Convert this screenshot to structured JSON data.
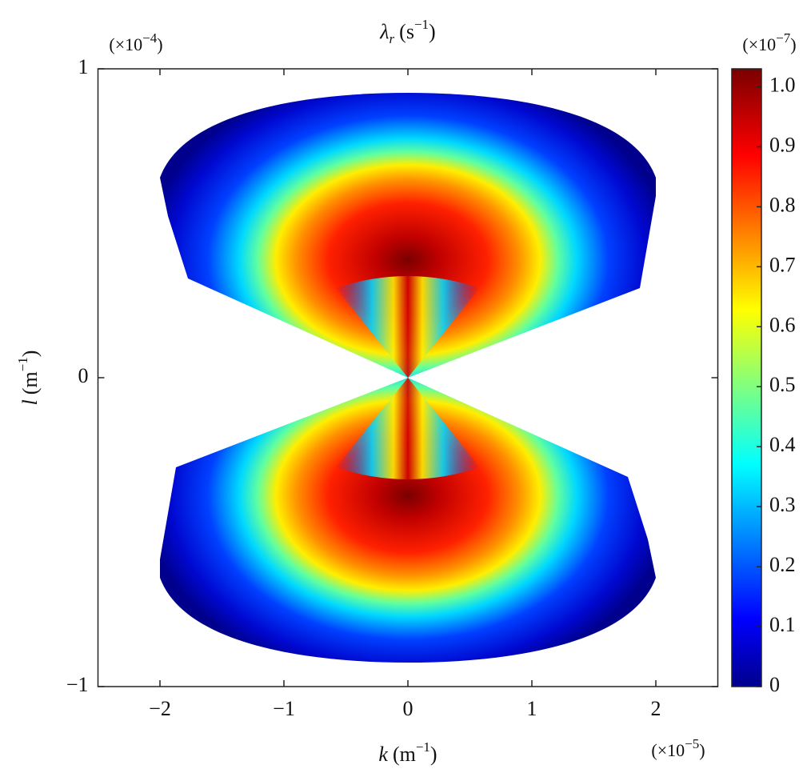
{
  "chart_data": {
    "type": "heatmap",
    "title": {
      "symbol": "λ",
      "subscript": "r",
      "unit": "(s",
      "exponent": "−1",
      "close": ")"
    },
    "x_label": {
      "symbol": "k",
      "unit": "(m",
      "exponent": "−1",
      "close": ")"
    },
    "y_label": {
      "symbol": "l",
      "unit": "(m",
      "exponent": "−1",
      "close": ")"
    },
    "x_multiplier": {
      "base": "(×10",
      "exponent": "−5",
      "close": ")"
    },
    "y_multiplier": {
      "base": "(×10",
      "exponent": "−4",
      "close": ")"
    },
    "colorbar_multiplier": {
      "base": "(×10",
      "exponent": "−7",
      "close": ")"
    },
    "xlim": [
      -2.5,
      2.5
    ],
    "xticks": [
      {
        "value": -2,
        "label": "−2"
      },
      {
        "value": -1,
        "label": "−1"
      },
      0,
      1,
      2
    ],
    "ylim": [
      -1,
      1
    ],
    "yticks": [
      {
        "value": -1,
        "label": "−1"
      },
      0,
      1
    ],
    "clim": [
      0,
      1.03
    ],
    "cticks": [
      0,
      0.1,
      0.2,
      0.3,
      0.4,
      0.5,
      0.6,
      0.7,
      0.8,
      0.9,
      {
        "value": 1,
        "label": "1.0"
      }
    ],
    "colormap": "jet"
  }
}
